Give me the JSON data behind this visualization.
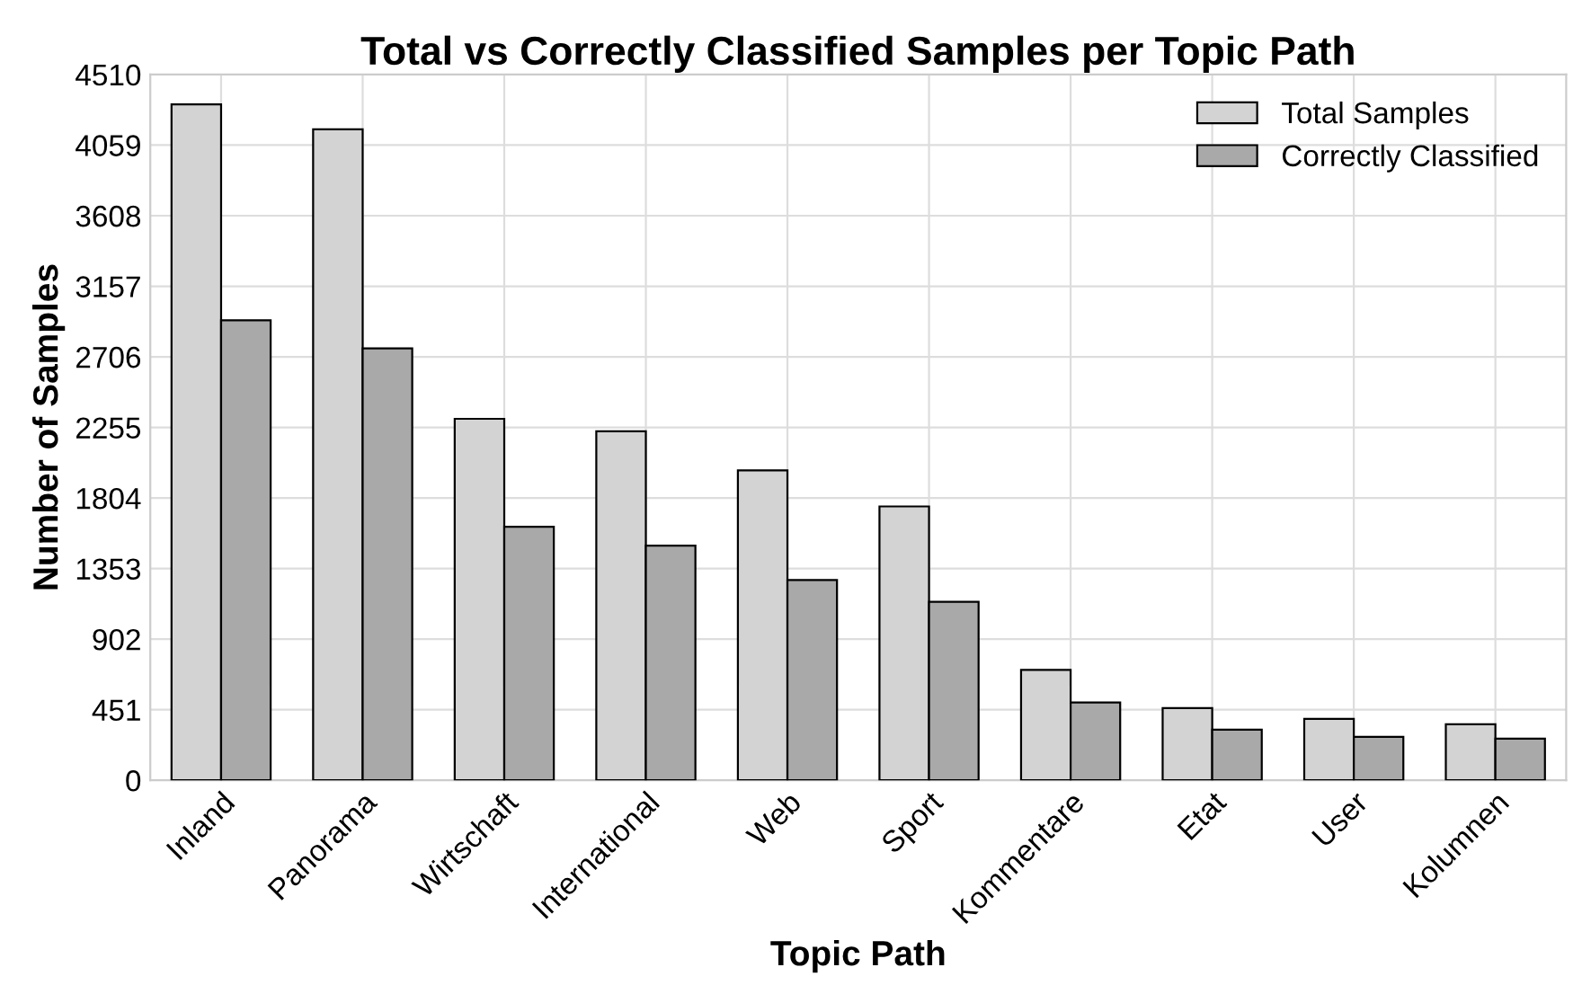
{
  "chart_data": {
    "type": "bar",
    "title": "Total vs Correctly Classified Samples per Topic Path",
    "xlabel": "Topic Path",
    "ylabel": "Number of Samples",
    "categories": [
      "Inland",
      "Panorama",
      "Wirtschaft",
      "International",
      "Web",
      "Sport",
      "Kommentare",
      "Etat",
      "User",
      "Kolumnen"
    ],
    "series": [
      {
        "name": "Total Samples",
        "color": "#d3d3d3",
        "values": [
          4320,
          4160,
          2310,
          2230,
          1980,
          1750,
          705,
          462,
          393,
          358
        ]
      },
      {
        "name": "Correctly Classified",
        "color": "#a9a9a9",
        "values": [
          2940,
          2760,
          1620,
          1500,
          1280,
          1140,
          497,
          324,
          277,
          266
        ]
      }
    ],
    "ylim": [
      0,
      4510
    ],
    "yticks": [
      0,
      451,
      902,
      1353,
      1804,
      2255,
      2706,
      3157,
      3608,
      4059,
      4510
    ],
    "grid": true,
    "legend": "top right"
  }
}
